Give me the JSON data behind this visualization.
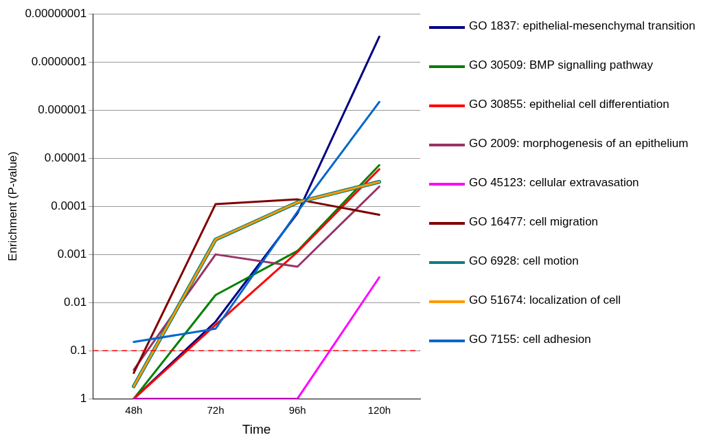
{
  "chart_data": {
    "type": "line",
    "xlabel": "Time",
    "ylabel": "Enrichment (P-value)",
    "categories": [
      "48h",
      "72h",
      "96h",
      "120h"
    ],
    "series": [
      {
        "name": "GO 1837: epithelial-mesenchymal transition",
        "color": "#000080",
        "values": [
          1,
          0.025,
          0.00014,
          3e-08
        ]
      },
      {
        "name": "GO 30509: BMP signalling pathway",
        "color": "#008000",
        "values": [
          1,
          0.007,
          0.00085,
          1.4e-05
        ]
      },
      {
        "name": "GO 30855: epithelial cell differentiation",
        "color": "#ff0000",
        "values": [
          1,
          0.029,
          0.00089,
          1.7e-05
        ]
      },
      {
        "name": "GO 2009: morphogenesis of an epithelium",
        "color": "#993366",
        "values": [
          0.25,
          0.001,
          0.0018,
          3.9e-05
        ]
      },
      {
        "name": "GO 45123: cellular extravasation",
        "color": "#ff00ff",
        "values": [
          1,
          1,
          1,
          0.003
        ]
      },
      {
        "name": "GO 16477: cell migration",
        "color": "#800000",
        "values": [
          0.29,
          9e-05,
          7.2e-05,
          0.00015
        ]
      },
      {
        "name": "GO 6928: cell motion",
        "color": "#008080",
        "values": [
          0.55,
          0.00049,
          8.3e-05,
          3.1e-05
        ]
      },
      {
        "name": "GO 51674: localization of cell",
        "color": "#ff9900",
        "values": [
          0.55,
          0.00049,
          8.3e-05,
          3.1e-05
        ]
      },
      {
        "name": "GO 7155: cell adhesion",
        "color": "#0066cc",
        "values": [
          0.066,
          0.035,
          0.00013,
          6.8e-07
        ]
      }
    ],
    "log": "y",
    "ylim": [
      1,
      1e-08
    ],
    "yticks": [
      1,
      0.1,
      0.01,
      0.001,
      {
        "value": 0.0001,
        "label": "0.0001"
      },
      {
        "value": 1e-05,
        "label": "0.00001"
      },
      {
        "value": 1e-06,
        "label": "0.000001"
      },
      {
        "value": 1e-07,
        "label": "0.0000001"
      },
      {
        "value": 1e-08,
        "label": "0.00000001"
      }
    ],
    "ref_lines": [
      {
        "axis": "y",
        "value": 0.1,
        "color": "#ff0000",
        "line_style": "dashed"
      }
    ],
    "grid": "y",
    "legend": "right",
    "marker": "none",
    "line_style": "solid"
  }
}
